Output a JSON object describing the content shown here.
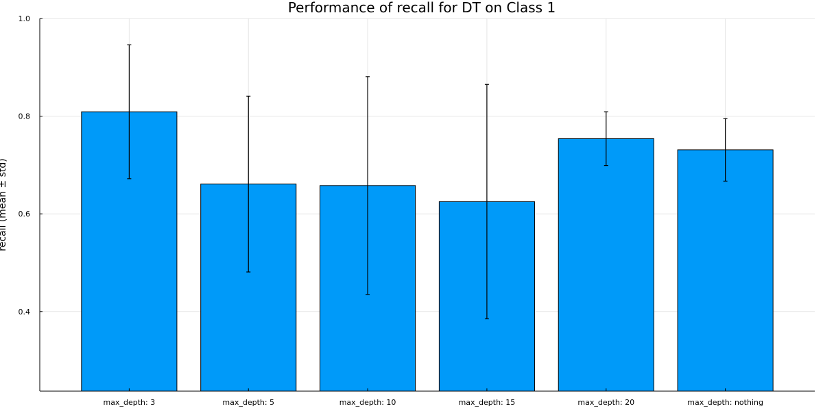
{
  "chart_data": {
    "type": "bar",
    "title": "Performance of recall for DT on Class 1",
    "ylabel": "recall (mean ± std)",
    "xlabel": "",
    "categories": [
      "max_depth: 3",
      "max_depth: 5",
      "max_depth: 10",
      "max_depth: 15",
      "max_depth: 20",
      "max_depth: nothing"
    ],
    "values": [
      0.809,
      0.661,
      0.658,
      0.625,
      0.754,
      0.731
    ],
    "errors": [
      0.137,
      0.18,
      0.223,
      0.24,
      0.055,
      0.064
    ],
    "ylim": [
      0.237,
      1.0
    ],
    "yticks": [
      0.4,
      0.6,
      0.8,
      1.0
    ],
    "ytick_labels": [
      "0.4",
      "0.6",
      "0.8",
      "1.0"
    ],
    "grid": true,
    "legend": "none",
    "colors": {
      "bar": "#009af9"
    }
  }
}
